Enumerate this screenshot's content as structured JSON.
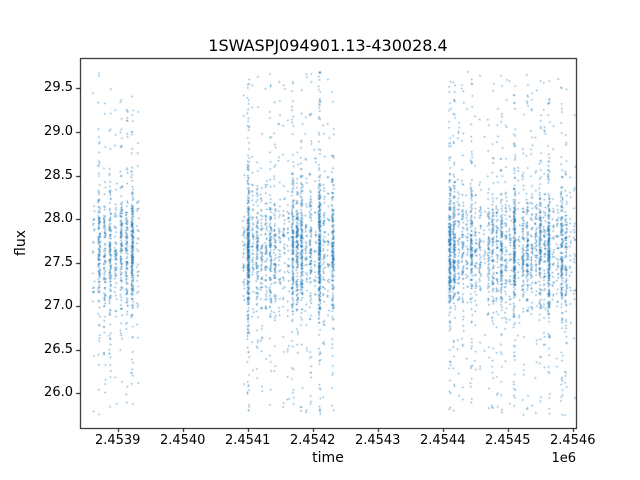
{
  "figure": {
    "background": "#ffffff"
  },
  "chart_data": {
    "type": "scatter",
    "title": "1SWASPJ094901.13-430028.4",
    "xlabel": "time",
    "ylabel": "flux",
    "x_offset_label": "1e6",
    "marker_color": "#1f77b4",
    "marker_alpha": 0.75,
    "grid": false,
    "legend": null,
    "xlim": [
      2453842,
      2454605
    ],
    "ylim": [
      25.6,
      29.85
    ],
    "xticks": [
      2453900,
      2454000,
      2454100,
      2454200,
      2454300,
      2454400,
      2454500,
      2454600
    ],
    "xtick_labels": [
      "2.4539",
      "2.4540",
      "2.4541",
      "2.4542",
      "2.4543",
      "2.4544",
      "2.4545",
      "2.4546"
    ],
    "yticks": [
      26.0,
      26.5,
      27.0,
      27.5,
      28.0,
      28.5,
      29.0,
      29.5
    ],
    "ytick_labels": [
      "26.0",
      "26.5",
      "27.0",
      "27.5",
      "28.0",
      "28.5",
      "29.0",
      "29.5"
    ],
    "flux_mean": 27.65,
    "flux_std_core": 0.38,
    "flux_min": 25.75,
    "flux_max": 29.7,
    "outlier_fraction": 0.2,
    "clusters": [
      {
        "x_start": 2453862,
        "x_end": 2453930,
        "nights": 9,
        "points": 950,
        "seed": 101
      },
      {
        "x_start": 2454093,
        "x_end": 2454230,
        "nights": 21,
        "points": 2300,
        "seed": 202
      },
      {
        "x_start": 2454410,
        "x_end": 2454602,
        "nights": 30,
        "points": 2800,
        "seed": 303
      }
    ]
  }
}
